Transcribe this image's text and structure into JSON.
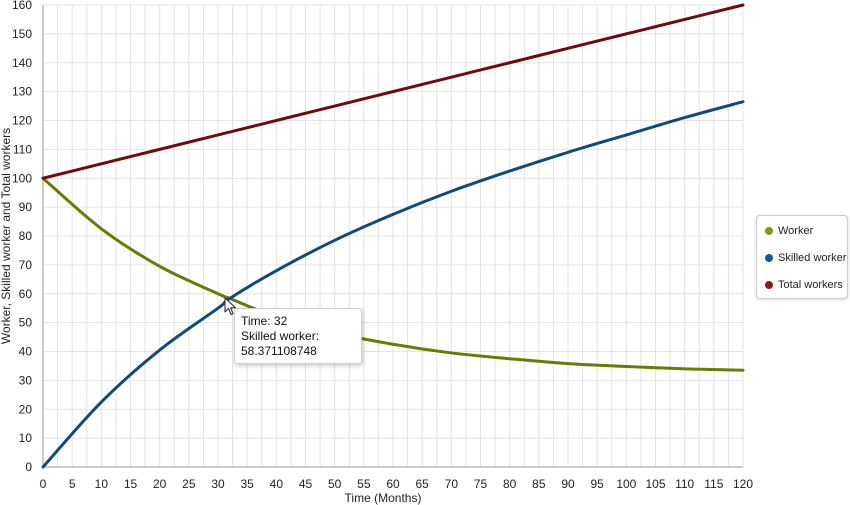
{
  "chart_data": {
    "type": "line",
    "title": "",
    "xlabel": "Time (Months)",
    "ylabel": "Worker, Skilled worker and Total workers",
    "xlim": [
      0,
      120
    ],
    "ylim": [
      0,
      160
    ],
    "x_ticks": [
      "0",
      "5",
      "10",
      "15",
      "20",
      "25",
      "30",
      "35",
      "40",
      "45",
      "50",
      "55",
      "60",
      "65",
      "70",
      "75",
      "80",
      "85",
      "90",
      "95",
      "100",
      "105",
      "110",
      "115",
      "120"
    ],
    "y_ticks": [
      "0",
      "10",
      "20",
      "30",
      "40",
      "50",
      "60",
      "70",
      "80",
      "90",
      "100",
      "110",
      "120",
      "130",
      "140",
      "150",
      "160"
    ],
    "grid": true,
    "legend_position": "right",
    "x": [
      0,
      10,
      20,
      30,
      32,
      40,
      50,
      60,
      70,
      80,
      90,
      100,
      110,
      120
    ],
    "series": [
      {
        "name": "Worker",
        "color": "#6b7a00",
        "values": [
          100,
          82.5,
          69.5,
          60,
          58.4,
          52,
          46.5,
          42.5,
          39.5,
          37.5,
          35.8,
          34.8,
          34,
          33.5
        ]
      },
      {
        "name": "Skilled worker",
        "color": "#0f4a7a",
        "values": [
          0,
          22.5,
          40.5,
          55,
          58.371108748,
          68,
          78.5,
          87.5,
          95.5,
          102.5,
          109,
          115,
          121,
          126.5
        ]
      },
      {
        "name": "Total workers",
        "color": "#6e0b0b",
        "values": [
          100,
          105,
          110,
          115,
          116,
          120,
          125,
          130,
          135,
          140,
          145,
          150,
          155,
          160
        ]
      }
    ]
  },
  "legend": {
    "items": [
      {
        "label": "Worker",
        "color": "#7e9a1c"
      },
      {
        "label": "Skilled worker",
        "color": "#0f5a9c"
      },
      {
        "label": "Total workers",
        "color": "#8b1a1a"
      }
    ]
  },
  "tooltip": {
    "line1": "Time: 32",
    "line2": "Skilled worker:",
    "line3": "58.371108748"
  }
}
